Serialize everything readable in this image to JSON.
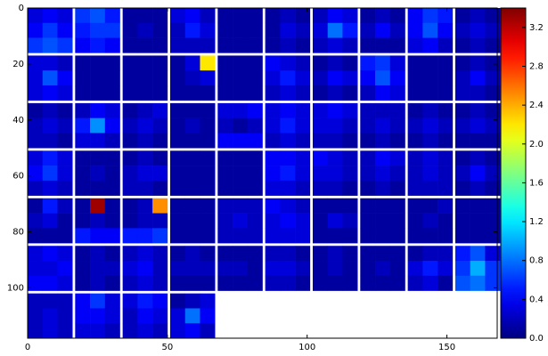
{
  "chart_data": {
    "type": "heatmap",
    "colormap": "jet",
    "xlim": [
      0,
      168
    ],
    "ylim": [
      118,
      0
    ],
    "xticks": [
      0,
      50,
      100,
      150
    ],
    "yticks": [
      0,
      20,
      40,
      60,
      80,
      100
    ],
    "clim": [
      0,
      3.4
    ],
    "cticks": [
      {
        "value": 0,
        "label": "0.0"
      },
      {
        "value": 0.4,
        "label": "0.4"
      },
      {
        "value": 0.8,
        "label": "0.8"
      },
      {
        "value": 1.2,
        "label": "1.2"
      },
      {
        "value": 1.6,
        "label": "1.6"
      },
      {
        "value": 2.0,
        "label": "2.0"
      },
      {
        "value": 2.4,
        "label": "2.4"
      },
      {
        "value": 2.8,
        "label": "2.8"
      },
      {
        "value": 3.2,
        "label": "3.2"
      }
    ],
    "tiles": [
      [
        [
          [
            0.3,
            0.4,
            0.3
          ],
          [
            0.4,
            0.6,
            0.4
          ],
          [
            0.6,
            0.7,
            0.6
          ]
        ],
        [
          [
            0.6,
            0.7,
            0.5
          ],
          [
            0.5,
            0.6,
            0.6
          ],
          [
            0.4,
            0.5,
            0.4
          ]
        ],
        [
          [
            0.1,
            0.1,
            0.1
          ],
          [
            0.1,
            0.2,
            0.1
          ],
          [
            0.1,
            0.1,
            0.1
          ]
        ],
        [
          [
            0.3,
            0.4,
            0.2
          ],
          [
            0.2,
            0.5,
            0.3
          ],
          [
            0.2,
            0.2,
            0.2
          ]
        ],
        [
          [
            0.1,
            0.1,
            0.1
          ],
          [
            0.1,
            0.1,
            0.1
          ],
          [
            0.1,
            0.1,
            0.1
          ]
        ],
        [
          [
            0.1,
            0.2,
            0.1
          ],
          [
            0.1,
            0.3,
            0.2
          ],
          [
            0.1,
            0.2,
            0.1
          ]
        ],
        [
          [
            0.2,
            0.4,
            0.3
          ],
          [
            0.3,
            0.8,
            0.5
          ],
          [
            0.2,
            0.3,
            0.2
          ]
        ],
        [
          [
            0.1,
            0.2,
            0.1
          ],
          [
            0.2,
            0.4,
            0.2
          ],
          [
            0.1,
            0.1,
            0.1
          ]
        ],
        [
          [
            0.4,
            0.6,
            0.5
          ],
          [
            0.4,
            0.7,
            0.4
          ],
          [
            0.3,
            0.4,
            0.2
          ]
        ],
        [
          [
            0.1,
            0.2,
            0.1
          ],
          [
            0.2,
            0.3,
            0.2
          ],
          [
            0.1,
            0.2,
            0.1
          ]
        ]
      ],
      [
        [
          [
            0.3,
            0.3,
            0.2
          ],
          [
            0.3,
            0.7,
            0.4
          ],
          [
            0.3,
            0.4,
            0.3
          ]
        ],
        [
          [
            0.1,
            0.1,
            0.1
          ],
          [
            0.1,
            0.1,
            0.1
          ],
          [
            0.1,
            0.1,
            0.1
          ]
        ],
        [
          [
            0.1,
            0.1,
            0.1
          ],
          [
            0.1,
            0.1,
            0.1
          ],
          [
            0.1,
            0.1,
            0.1
          ]
        ],
        [
          [
            0.1,
            0.3,
            2.2
          ],
          [
            0.1,
            0.2,
            0.3
          ],
          [
            0.1,
            0.1,
            0.1
          ]
        ],
        [
          [
            0.1,
            0.1,
            0.1
          ],
          [
            0.1,
            0.1,
            0.1
          ],
          [
            0.1,
            0.1,
            0.1
          ]
        ],
        [
          [
            0.4,
            0.3,
            0.2
          ],
          [
            0.3,
            0.5,
            0.3
          ],
          [
            0.2,
            0.3,
            0.2
          ]
        ],
        [
          [
            0.1,
            0.2,
            0.1
          ],
          [
            0.2,
            0.4,
            0.3
          ],
          [
            0.1,
            0.2,
            0.1
          ]
        ],
        [
          [
            0.5,
            0.6,
            0.3
          ],
          [
            0.4,
            0.7,
            0.4
          ],
          [
            0.2,
            0.4,
            0.3
          ]
        ],
        [
          [
            0.1,
            0.1,
            0.1
          ],
          [
            0.1,
            0.1,
            0.1
          ],
          [
            0.1,
            0.1,
            0.1
          ]
        ],
        [
          [
            0.1,
            0.2,
            0.1
          ],
          [
            0.2,
            0.4,
            0.2
          ],
          [
            0.2,
            0.2,
            0.1
          ]
        ]
      ],
      [
        [
          [
            0.1,
            0.2,
            0.1
          ],
          [
            0.2,
            0.3,
            0.2
          ],
          [
            0.2,
            0.2,
            0.1
          ]
        ],
        [
          [
            0.2,
            0.4,
            0.3
          ],
          [
            0.5,
            0.9,
            0.4
          ],
          [
            0.3,
            0.3,
            0.2
          ]
        ],
        [
          [
            0.1,
            0.2,
            0.3
          ],
          [
            0.2,
            0.3,
            0.2
          ],
          [
            0.1,
            0.2,
            0.1
          ]
        ],
        [
          [
            0.1,
            0.1,
            0.1
          ],
          [
            0.1,
            0.2,
            0.1
          ],
          [
            0.1,
            0.1,
            0.1
          ]
        ],
        [
          [
            0.3,
            0.3,
            0.4
          ],
          [
            0.2,
            0.1,
            0.2
          ],
          [
            0.4,
            0.4,
            0.4
          ]
        ],
        [
          [
            0.3,
            0.4,
            0.3
          ],
          [
            0.3,
            0.5,
            0.3
          ],
          [
            0.2,
            0.3,
            0.2
          ]
        ],
        [
          [
            0.3,
            0.4,
            0.3
          ],
          [
            0.3,
            0.3,
            0.2
          ],
          [
            0.2,
            0.2,
            0.1
          ]
        ],
        [
          [
            0.2,
            0.2,
            0.2
          ],
          [
            0.2,
            0.3,
            0.2
          ],
          [
            0.1,
            0.2,
            0.1
          ]
        ],
        [
          [
            0.1,
            0.2,
            0.1
          ],
          [
            0.2,
            0.3,
            0.2
          ],
          [
            0.1,
            0.2,
            0.1
          ]
        ],
        [
          [
            0.1,
            0.2,
            0.1
          ],
          [
            0.2,
            0.3,
            0.2
          ],
          [
            0.1,
            0.1,
            0.1
          ]
        ]
      ],
      [
        [
          [
            0.3,
            0.5,
            0.3
          ],
          [
            0.4,
            0.6,
            0.3
          ],
          [
            0.2,
            0.3,
            0.2
          ]
        ],
        [
          [
            0.1,
            0.1,
            0.1
          ],
          [
            0.1,
            0.2,
            0.1
          ],
          [
            0.1,
            0.1,
            0.1
          ]
        ],
        [
          [
            0.1,
            0.2,
            0.1
          ],
          [
            0.2,
            0.3,
            0.3
          ],
          [
            0.2,
            0.2,
            0.1
          ]
        ],
        [
          [
            0.1,
            0.1,
            0.1
          ],
          [
            0.1,
            0.1,
            0.1
          ],
          [
            0.1,
            0.1,
            0.1
          ]
        ],
        [
          [
            0.1,
            0.1,
            0.1
          ],
          [
            0.1,
            0.1,
            0.1
          ],
          [
            0.1,
            0.1,
            0.1
          ]
        ],
        [
          [
            0.4,
            0.4,
            0.3
          ],
          [
            0.4,
            0.5,
            0.3
          ],
          [
            0.3,
            0.3,
            0.2
          ]
        ],
        [
          [
            0.4,
            0.3,
            0.2
          ],
          [
            0.3,
            0.3,
            0.2
          ],
          [
            0.2,
            0.2,
            0.1
          ]
        ],
        [
          [
            0.2,
            0.4,
            0.3
          ],
          [
            0.2,
            0.3,
            0.2
          ],
          [
            0.1,
            0.2,
            0.1
          ]
        ],
        [
          [
            0.2,
            0.3,
            0.2
          ],
          [
            0.2,
            0.3,
            0.2
          ],
          [
            0.2,
            0.2,
            0.2
          ]
        ],
        [
          [
            0.1,
            0.2,
            0.1
          ],
          [
            0.2,
            0.4,
            0.2
          ],
          [
            0.1,
            0.2,
            0.1
          ]
        ]
      ],
      [
        [
          [
            0.1,
            0.5,
            0.2
          ],
          [
            0.2,
            0.3,
            0.1
          ],
          [
            0.1,
            0.1,
            0.1
          ]
        ],
        [
          [
            0.1,
            3.3,
            0.1
          ],
          [
            0.1,
            0.2,
            0.1
          ],
          [
            0.5,
            0.4,
            0.4
          ]
        ],
        [
          [
            0.1,
            0.2,
            2.5
          ],
          [
            0.1,
            0.2,
            0.2
          ],
          [
            0.5,
            0.5,
            0.6
          ]
        ],
        [
          [
            0.1,
            0.1,
            0.1
          ],
          [
            0.1,
            0.1,
            0.1
          ],
          [
            0.1,
            0.1,
            0.1
          ]
        ],
        [
          [
            0.2,
            0.2,
            0.2
          ],
          [
            0.2,
            0.3,
            0.2
          ],
          [
            0.2,
            0.2,
            0.2
          ]
        ],
        [
          [
            0.4,
            0.3,
            0.2
          ],
          [
            0.3,
            0.4,
            0.3
          ],
          [
            0.3,
            0.3,
            0.3
          ]
        ],
        [
          [
            0.1,
            0.1,
            0.1
          ],
          [
            0.1,
            0.3,
            0.2
          ],
          [
            0.1,
            0.1,
            0.1
          ]
        ],
        [
          [
            0.1,
            0.1,
            0.1
          ],
          [
            0.1,
            0.1,
            0.1
          ],
          [
            0.1,
            0.1,
            0.1
          ]
        ],
        [
          [
            0.1,
            0.1,
            0.2
          ],
          [
            0.1,
            0.2,
            0.1
          ],
          [
            0.1,
            0.1,
            0.1
          ]
        ],
        [
          [
            0.1,
            0.1,
            0.1
          ],
          [
            0.1,
            0.1,
            0.1
          ],
          [
            0.1,
            0.1,
            0.1
          ]
        ]
      ],
      [
        [
          [
            0.3,
            0.4,
            0.3
          ],
          [
            0.3,
            0.3,
            0.4
          ],
          [
            0.4,
            0.4,
            0.3
          ]
        ],
        [
          [
            0.1,
            0.2,
            0.1
          ],
          [
            0.1,
            0.2,
            0.2
          ],
          [
            0.1,
            0.2,
            0.1
          ]
        ],
        [
          [
            0.2,
            0.3,
            0.2
          ],
          [
            0.3,
            0.4,
            0.2
          ],
          [
            0.2,
            0.3,
            0.2
          ]
        ],
        [
          [
            0.1,
            0.2,
            0.1
          ],
          [
            0.2,
            0.2,
            0.2
          ],
          [
            0.1,
            0.1,
            0.1
          ]
        ],
        [
          [
            0.1,
            0.1,
            0.1
          ],
          [
            0.2,
            0.2,
            0.1
          ],
          [
            0.1,
            0.1,
            0.1
          ]
        ],
        [
          [
            0.2,
            0.2,
            0.1
          ],
          [
            0.3,
            0.3,
            0.2
          ],
          [
            0.2,
            0.2,
            0.1
          ]
        ],
        [
          [
            0.1,
            0.2,
            0.1
          ],
          [
            0.1,
            0.2,
            0.1
          ],
          [
            0.1,
            0.1,
            0.1
          ]
        ],
        [
          [
            0.1,
            0.1,
            0.1
          ],
          [
            0.1,
            0.2,
            0.1
          ],
          [
            0.1,
            0.1,
            0.1
          ]
        ],
        [
          [
            0.1,
            0.2,
            0.2
          ],
          [
            0.3,
            0.5,
            0.3
          ],
          [
            0.2,
            0.3,
            0.1
          ]
        ],
        [
          [
            0.5,
            0.7,
            0.3
          ],
          [
            0.6,
            1.0,
            0.6
          ],
          [
            0.7,
            0.8,
            0.6
          ]
        ]
      ],
      [
        [
          [
            0.2,
            0.2,
            0.2
          ],
          [
            0.2,
            0.3,
            0.2
          ],
          [
            0.2,
            0.3,
            0.2
          ]
        ],
        [
          [
            0.4,
            0.6,
            0.3
          ],
          [
            0.4,
            0.4,
            0.3
          ],
          [
            0.3,
            0.3,
            0.2
          ]
        ],
        [
          [
            0.3,
            0.5,
            0.4
          ],
          [
            0.2,
            0.4,
            0.3
          ],
          [
            0.2,
            0.3,
            0.2
          ]
        ],
        [
          [
            0.1,
            0.2,
            0.3
          ],
          [
            0.3,
            0.8,
            0.4
          ],
          [
            0.3,
            0.4,
            0.2
          ]
        ]
      ]
    ]
  }
}
